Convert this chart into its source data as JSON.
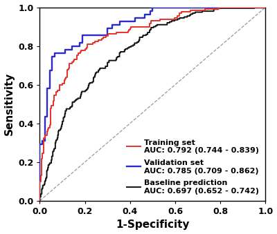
{
  "xlabel": "1-Specificity",
  "ylabel": "Sensitivity",
  "xlim": [
    0.0,
    1.0
  ],
  "ylim": [
    0.0,
    1.0
  ],
  "xticks": [
    0.0,
    0.2,
    0.4,
    0.6,
    0.8,
    1.0
  ],
  "yticks": [
    0.0,
    0.2,
    0.4,
    0.6,
    0.8,
    1.0
  ],
  "training_color": "#E8312A",
  "validation_color": "#2B2BCC",
  "baseline_color": "#111111",
  "diagonal_color": "#999999",
  "legend_labels": [
    "Training set",
    "AUC: 0.792 (0.744 - 0.839)",
    "Validation set",
    "AUC: 0.785 (0.709 - 0.862)",
    "Baseline prediction",
    "AUC: 0.697 (0.652 - 0.742)"
  ],
  "legend_colors": [
    "#E8312A",
    "#2B2BCC",
    "#111111"
  ],
  "background_color": "#ffffff",
  "linewidth_curves": 1.4,
  "linewidth_diag": 0.9,
  "fontsize_labels": 11,
  "fontsize_ticks": 9,
  "fontsize_legend": 8
}
